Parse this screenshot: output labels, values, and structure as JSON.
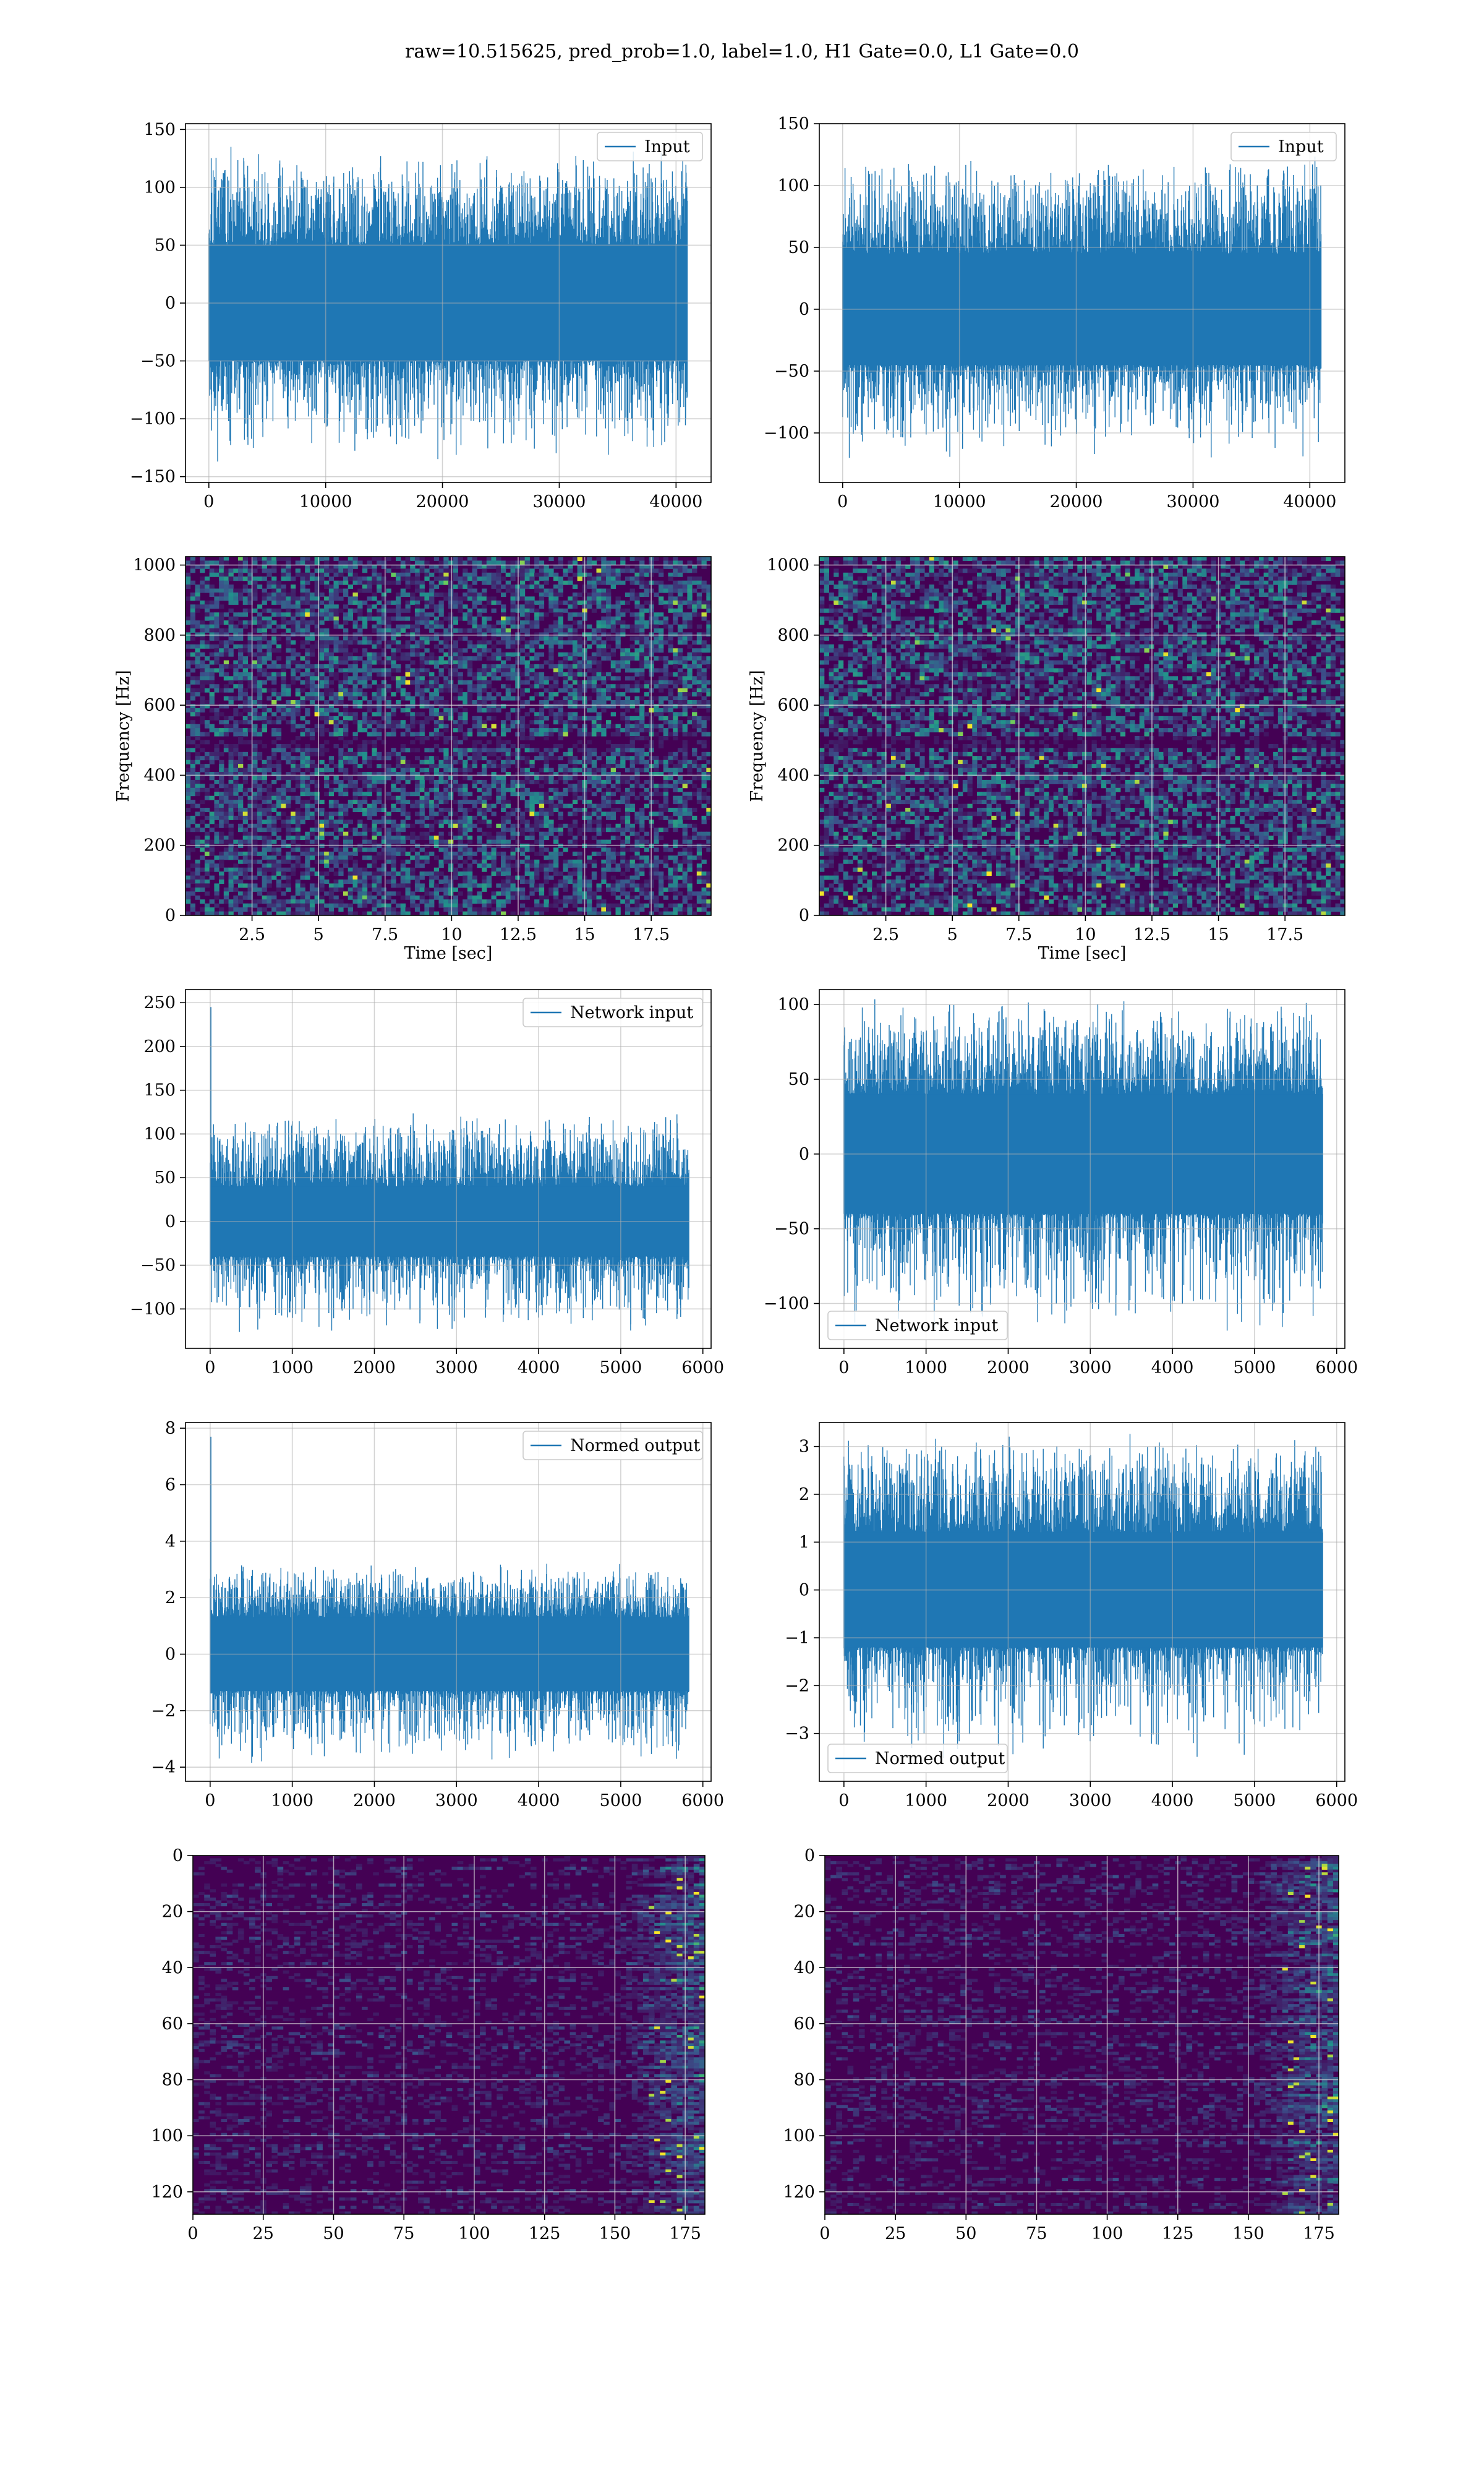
{
  "suptitle": "raw=10.515625, pred_prob=1.0, label=1.0, H1 Gate=0.0, L1 Gate=0.0",
  "colors": {
    "line": "#1f77b4",
    "grid": "#b0b0b0",
    "viridis_dark": "#440154",
    "viridis_mid": "#21908d",
    "viridis_bright": "#fde725"
  },
  "chart_data": [
    {
      "id": "r1c1",
      "type": "line",
      "legend": "Input",
      "legend_loc": "upper right",
      "xlim": [
        -2000,
        43000
      ],
      "ylim": [
        -155,
        155
      ],
      "xticks": [
        0,
        10000,
        20000,
        30000,
        40000
      ],
      "yticks": [
        -150,
        -100,
        -50,
        0,
        50,
        100,
        150
      ],
      "series": [
        {
          "name": "Input",
          "x_range": [
            0,
            40960
          ],
          "band": [
            -50,
            50
          ],
          "peak": [
            -140,
            135
          ]
        }
      ]
    },
    {
      "id": "r1c2",
      "type": "line",
      "legend": "Input",
      "legend_loc": "upper right",
      "xlim": [
        -2000,
        43000
      ],
      "ylim": [
        -140,
        150
      ],
      "xticks": [
        0,
        10000,
        20000,
        30000,
        40000
      ],
      "yticks": [
        -100,
        -50,
        0,
        50,
        100,
        150
      ],
      "series": [
        {
          "name": "Input",
          "x_range": [
            0,
            40960
          ],
          "band": [
            -45,
            45
          ],
          "peak": [
            -125,
            125
          ]
        }
      ]
    },
    {
      "id": "r2c1",
      "type": "heatmap",
      "colormap": "viridis",
      "xlabel": "Time [sec]",
      "ylabel": "Frequency [Hz]",
      "xlim": [
        0,
        19.75
      ],
      "ylim": [
        0,
        1024
      ],
      "xticks": [
        2.5,
        5.0,
        7.5,
        10.0,
        12.5,
        15.0,
        17.5
      ],
      "yticks": [
        0,
        200,
        400,
        600,
        800,
        1000
      ],
      "dark_band_hz": [
        480,
        515
      ]
    },
    {
      "id": "r2c2",
      "type": "heatmap",
      "colormap": "viridis",
      "xlabel": "Time [sec]",
      "ylabel": "Frequency [Hz]",
      "xlim": [
        0,
        19.75
      ],
      "ylim": [
        0,
        1024
      ],
      "xticks": [
        2.5,
        5.0,
        7.5,
        10.0,
        12.5,
        15.0,
        17.5
      ],
      "yticks": [
        0,
        200,
        400,
        600,
        800,
        1000
      ],
      "dark_band_hz": [
        480,
        515
      ]
    },
    {
      "id": "r3c1",
      "type": "line",
      "legend": "Network input",
      "legend_loc": "upper right",
      "xlim": [
        -300,
        6100
      ],
      "ylim": [
        -145,
        265
      ],
      "xticks": [
        0,
        1000,
        2000,
        3000,
        4000,
        5000,
        6000
      ],
      "yticks": [
        -100,
        -50,
        0,
        50,
        100,
        150,
        200,
        250
      ],
      "series": [
        {
          "name": "Network input",
          "x_range": [
            0,
            5830
          ],
          "band": [
            -40,
            40
          ],
          "peak": [
            -130,
            125
          ],
          "spike": [
            0,
            245
          ]
        }
      ]
    },
    {
      "id": "r3c2",
      "type": "line",
      "legend": "Network input",
      "legend_loc": "lower left",
      "xlim": [
        -300,
        6100
      ],
      "ylim": [
        -130,
        110
      ],
      "xticks": [
        0,
        1000,
        2000,
        3000,
        4000,
        5000,
        6000
      ],
      "yticks": [
        -100,
        -50,
        0,
        50,
        100
      ],
      "series": [
        {
          "name": "Network input",
          "x_range": [
            0,
            5830
          ],
          "band": [
            -40,
            40
          ],
          "peak": [
            -120,
            105
          ]
        }
      ]
    },
    {
      "id": "r4c1",
      "type": "line",
      "legend": "Normed output",
      "legend_loc": "upper right",
      "xlim": [
        -300,
        6100
      ],
      "ylim": [
        -4.5,
        8.2
      ],
      "xticks": [
        0,
        1000,
        2000,
        3000,
        4000,
        5000,
        6000
      ],
      "yticks": [
        -4,
        -2,
        0,
        2,
        4,
        6,
        8
      ],
      "series": [
        {
          "name": "Normed output",
          "x_range": [
            0,
            5830
          ],
          "band": [
            -1.3,
            1.3
          ],
          "peak": [
            -4.0,
            3.3
          ],
          "spike": [
            0,
            7.7
          ]
        }
      ]
    },
    {
      "id": "r4c2",
      "type": "line",
      "legend": "Normed output",
      "legend_loc": "lower left",
      "xlim": [
        -300,
        6100
      ],
      "ylim": [
        -4.0,
        3.5
      ],
      "xticks": [
        0,
        1000,
        2000,
        3000,
        4000,
        5000,
        6000
      ],
      "yticks": [
        -3,
        -2,
        -1,
        0,
        1,
        2,
        3
      ],
      "series": [
        {
          "name": "Normed output",
          "x_range": [
            0,
            5830
          ],
          "band": [
            -1.2,
            1.2
          ],
          "peak": [
            -3.6,
            3.3
          ]
        }
      ]
    },
    {
      "id": "r5c1",
      "type": "heatmap",
      "colormap": "viridis",
      "xlim": [
        0,
        182
      ],
      "ylim": [
        128,
        0
      ],
      "xticks": [
        0,
        25,
        50,
        75,
        100,
        125,
        150,
        175
      ],
      "yticks": [
        0,
        20,
        40,
        60,
        80,
        100,
        120
      ]
    },
    {
      "id": "r5c2",
      "type": "heatmap",
      "colormap": "viridis",
      "xlim": [
        0,
        182
      ],
      "ylim": [
        128,
        0
      ],
      "xticks": [
        0,
        25,
        50,
        75,
        100,
        125,
        150,
        175
      ],
      "yticks": [
        0,
        20,
        40,
        60,
        80,
        100,
        120
      ]
    }
  ]
}
